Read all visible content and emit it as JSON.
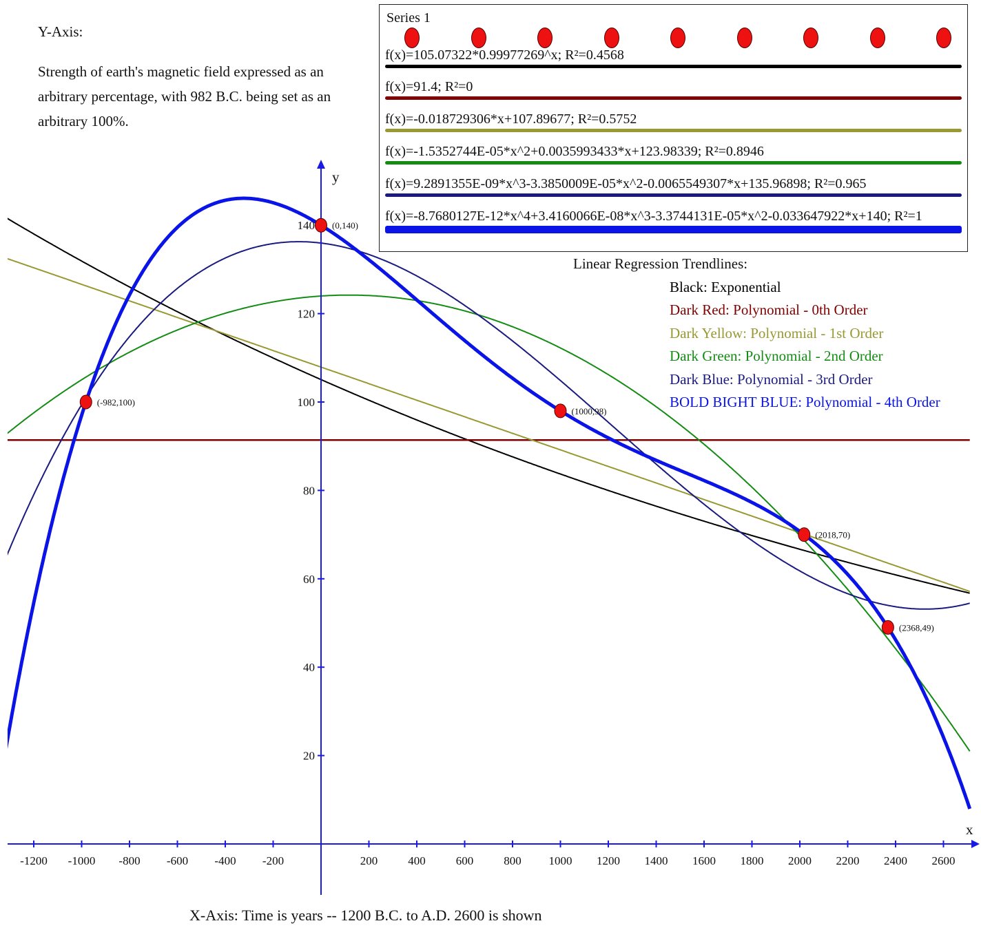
{
  "y_axis_note": {
    "heading": "Y-Axis:",
    "text": "Strength of earth's magnetic field expressed as an arbitrary percentage, with 982 B.C. being set as an arbitrary 100%."
  },
  "x_axis_note": "X-Axis: Time is years -- 1200 B.C. to A.D. 2600 is shown",
  "legend": {
    "series_label": "Series 1",
    "entries": [
      {
        "equation": "f(x)=105.07322*0.99977269^x; R²=0.4568",
        "color": "#000000"
      },
      {
        "equation": "f(x)=91.4; R²=0",
        "color": "#800000"
      },
      {
        "equation": "f(x)=-0.018729306*x+107.89677; R²=0.5752",
        "color": "#999933"
      },
      {
        "equation": "f(x)=-1.5352744E-05*x^2+0.0035993433*x+123.98339; R²=0.8946",
        "color": "#148c14"
      },
      {
        "equation": "f(x)=9.2891355E-09*x^3-3.3850009E-05*x^2-0.0065549307*x+135.96898; R²=0.965",
        "color": "#1a1a80"
      },
      {
        "equation": "f(x)=-8.7680127E-12*x^4+3.4160066E-08*x^3-3.3744131E-05*x^2-0.033647922*x+140; R²=1",
        "color": "#0a14e6"
      }
    ]
  },
  "key": {
    "title": "Linear Regression Trendlines:",
    "rows": [
      {
        "text": "Black: Exponential",
        "color": "#000000"
      },
      {
        "text": "Dark Red: Polynomial - 0th Order",
        "color": "#800000"
      },
      {
        "text": "Dark Yellow: Polynomial - 1st Order",
        "color": "#999933"
      },
      {
        "text": "Dark Green: Polynomial - 2nd Order",
        "color": "#148c14"
      },
      {
        "text": "Dark Blue: Polynomial - 3rd Order",
        "color": "#1a1a80"
      },
      {
        "text": "BOLD BIGHT BLUE: Polynomial - 4th Order",
        "color": "#0a14e6"
      }
    ]
  },
  "chart_data": {
    "type": "scatter",
    "xlabel": "x",
    "ylabel": "y",
    "xlim": [
      -1330,
      2710
    ],
    "ylim": [
      0,
      150
    ],
    "x_ticks": [
      -1200,
      -1000,
      -800,
      -600,
      -400,
      -200,
      200,
      400,
      600,
      800,
      1000,
      1200,
      1400,
      1600,
      1800,
      2000,
      2200,
      2400,
      2600
    ],
    "y_ticks": [
      20,
      40,
      60,
      80,
      100,
      120,
      140
    ],
    "grid": false,
    "axis_color": "#1a1ae6",
    "series": [
      {
        "name": "Series 1",
        "points": [
          {
            "x": -982,
            "y": 100,
            "label": "(-982,100)"
          },
          {
            "x": 0,
            "y": 140,
            "label": "(0,140)"
          },
          {
            "x": 1000,
            "y": 98,
            "label": "(1000,98)"
          },
          {
            "x": 2018,
            "y": 70,
            "label": "(2018,70)"
          },
          {
            "x": 2368,
            "y": 49,
            "label": "(2368,49)"
          }
        ],
        "color": "#ee1111"
      }
    ],
    "trendlines": [
      {
        "type": "exponential",
        "a": 105.07322,
        "b": 0.99977269,
        "color": "#000000",
        "width": 2
      },
      {
        "type": "polynomial",
        "coef": [
          91.4
        ],
        "color": "#800000",
        "width": 2.5
      },
      {
        "type": "polynomial",
        "coef": [
          107.89677,
          -0.018729306
        ],
        "color": "#999933",
        "width": 2
      },
      {
        "type": "polynomial",
        "coef": [
          123.98339,
          0.0035993433,
          -1.5352744e-05
        ],
        "color": "#148c14",
        "width": 2
      },
      {
        "type": "polynomial",
        "coef": [
          135.96898,
          -0.0065549307,
          -3.3850009e-05,
          9.2891355e-09
        ],
        "color": "#1a1a80",
        "width": 2
      },
      {
        "type": "polynomial",
        "coef": [
          140,
          -0.033647922,
          -3.3744131e-05,
          3.4160066e-08,
          -8.7680127e-12
        ],
        "color": "#0a14e6",
        "width": 5
      }
    ]
  }
}
